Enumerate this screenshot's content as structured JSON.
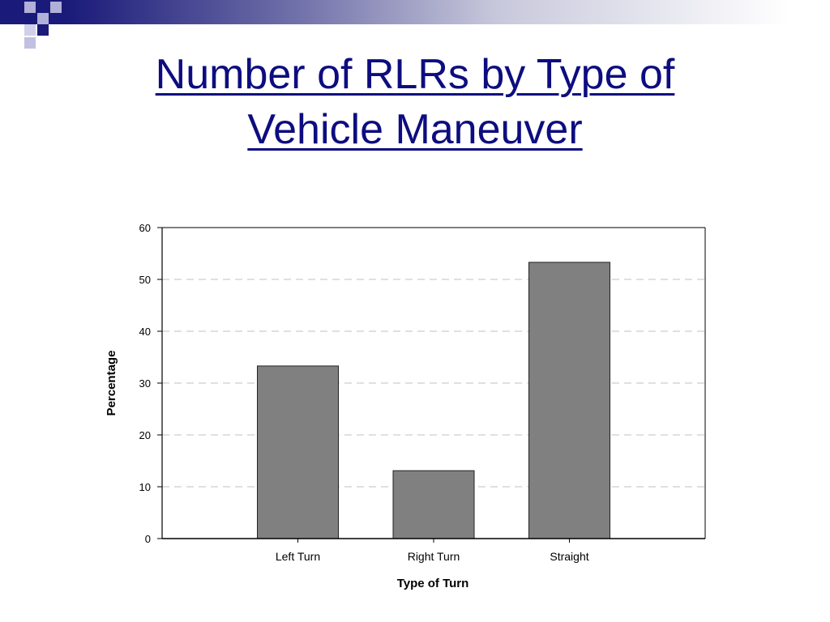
{
  "slide": {
    "title_line1": "Number of RLRs by Type of",
    "title_line2": "Vehicle Maneuver"
  },
  "colors": {
    "title": "#0d0d80",
    "bar_fill": "#808080",
    "bar_stroke": "#222222",
    "grid": "#c0c0c0",
    "band_dark": "#1a1a7a"
  },
  "chart_data": {
    "type": "bar",
    "categories": [
      "Left Turn",
      "Right Turn",
      "Straight"
    ],
    "values": [
      33.3,
      13.1,
      53.3
    ],
    "title": "",
    "xlabel": "Type of Turn",
    "ylabel": "Percentage",
    "ylim": [
      0,
      60
    ],
    "yticks": [
      0,
      10,
      20,
      30,
      40,
      50,
      60
    ],
    "grid": true,
    "grid_style": "dashed",
    "legend": "none"
  }
}
